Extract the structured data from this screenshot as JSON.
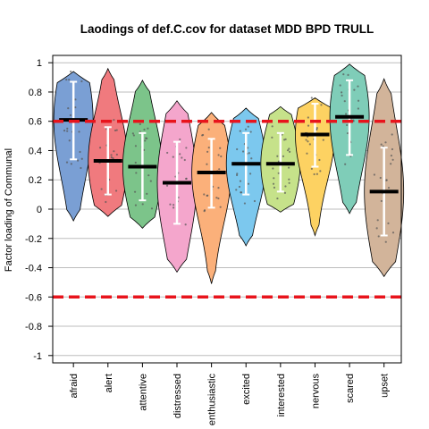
{
  "chart_data": {
    "type": "violin",
    "title": "Laodings of def.C.cov for dataset MDD BPD TRULL",
    "xlabel": "",
    "ylabel": "Factor loading of Communal",
    "ylim": [
      -1.05,
      1.05
    ],
    "yticks": [
      -1,
      -0.8,
      -0.6,
      -0.4,
      -0.2,
      0,
      0.2,
      0.4,
      0.6,
      0.8,
      1
    ],
    "ytick_labels": [
      "-1",
      "-0.8",
      "-0.6",
      "-0.4",
      "-0.2",
      "0",
      "0.2",
      "0.4",
      "0.6",
      "0.8",
      "1"
    ],
    "grid": "horizontal",
    "threshold_lines": [
      0.6,
      -0.6
    ],
    "threshold_color": "#e8141c",
    "categories": [
      "afraid",
      "alert",
      "attentive",
      "distressed",
      "enthusiastic",
      "excited",
      "interested",
      "nervous",
      "scared",
      "upset"
    ],
    "violins": [
      {
        "label": "afraid",
        "color": "#7a9fd4",
        "median": 0.61,
        "lower": 0.34,
        "upper": 0.87,
        "min": -0.08,
        "max": 0.94
      },
      {
        "label": "alert",
        "color": "#f07a7e",
        "median": 0.33,
        "lower": 0.1,
        "upper": 0.56,
        "min": -0.05,
        "max": 0.96
      },
      {
        "label": "attentive",
        "color": "#7cc48a",
        "median": 0.29,
        "lower": 0.06,
        "upper": 0.52,
        "min": -0.13,
        "max": 0.88
      },
      {
        "label": "distressed",
        "color": "#f4a6cc",
        "median": 0.18,
        "lower": -0.1,
        "upper": 0.46,
        "min": -0.43,
        "max": 0.74
      },
      {
        "label": "enthusiastic",
        "color": "#fbb07a",
        "median": 0.25,
        "lower": 0.01,
        "upper": 0.48,
        "min": -0.51,
        "max": 0.66
      },
      {
        "label": "excited",
        "color": "#7cc8ee",
        "median": 0.31,
        "lower": 0.1,
        "upper": 0.52,
        "min": -0.25,
        "max": 0.69
      },
      {
        "label": "interested",
        "color": "#c6e28a",
        "median": 0.31,
        "lower": 0.12,
        "upper": 0.52,
        "min": -0.02,
        "max": 0.7
      },
      {
        "label": "nervous",
        "color": "#fdd262",
        "median": 0.51,
        "lower": 0.29,
        "upper": 0.72,
        "min": -0.18,
        "max": 0.76
      },
      {
        "label": "scared",
        "color": "#7fcdb8",
        "median": 0.63,
        "lower": 0.37,
        "upper": 0.88,
        "min": -0.03,
        "max": 0.99
      },
      {
        "label": "upset",
        "color": "#d2b49a",
        "median": 0.12,
        "lower": -0.18,
        "upper": 0.42,
        "min": -0.46,
        "max": 0.89
      }
    ]
  }
}
